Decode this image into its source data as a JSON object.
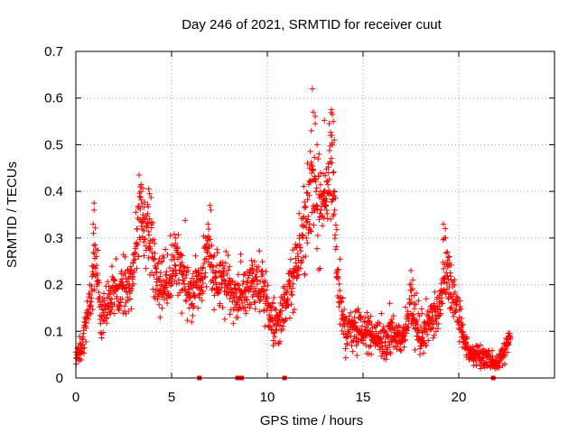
{
  "chart_data": {
    "type": "scatter",
    "title": "Day 246 of 2021, SRMTID for receiver cuut",
    "xlabel": "GPS time / hours",
    "ylabel": "SRMTID / TECUs",
    "xlim": [
      0,
      25
    ],
    "ylim": [
      0,
      0.7
    ],
    "grid": true,
    "marker": "+",
    "color": "#ff0000",
    "x_ticks": [
      {
        "value": 0,
        "label": "0"
      },
      {
        "value": 5,
        "label": "5"
      },
      {
        "value": 10,
        "label": "10"
      },
      {
        "value": 15,
        "label": "15"
      },
      {
        "value": 20,
        "label": "20"
      }
    ],
    "y_ticks": [
      {
        "value": 0,
        "label": "0"
      },
      {
        "value": 0.1,
        "label": "0.1"
      },
      {
        "value": 0.2,
        "label": "0.2"
      },
      {
        "value": 0.3,
        "label": "0.3"
      },
      {
        "value": 0.4,
        "label": "0.4"
      },
      {
        "value": 0.5,
        "label": "0.5"
      },
      {
        "value": 0.6,
        "label": "0.6"
      },
      {
        "value": 0.7,
        "label": "0.7"
      }
    ],
    "envelope_points": [
      [
        0.0,
        0.04,
        0.02
      ],
      [
        0.3,
        0.07,
        0.03
      ],
      [
        0.6,
        0.12,
        0.04
      ],
      [
        0.8,
        0.17,
        0.05
      ],
      [
        1.0,
        0.28,
        0.06
      ],
      [
        1.3,
        0.13,
        0.04
      ],
      [
        1.7,
        0.16,
        0.05
      ],
      [
        2.0,
        0.18,
        0.05
      ],
      [
        2.5,
        0.19,
        0.05
      ],
      [
        3.0,
        0.22,
        0.05
      ],
      [
        3.3,
        0.36,
        0.07
      ],
      [
        3.6,
        0.33,
        0.07
      ],
      [
        3.9,
        0.3,
        0.06
      ],
      [
        4.3,
        0.19,
        0.05
      ],
      [
        4.8,
        0.21,
        0.05
      ],
      [
        5.2,
        0.25,
        0.06
      ],
      [
        5.6,
        0.21,
        0.05
      ],
      [
        6.0,
        0.18,
        0.05
      ],
      [
        6.5,
        0.2,
        0.05
      ],
      [
        6.9,
        0.28,
        0.06
      ],
      [
        7.3,
        0.22,
        0.05
      ],
      [
        7.8,
        0.2,
        0.05
      ],
      [
        8.3,
        0.17,
        0.04
      ],
      [
        8.8,
        0.19,
        0.05
      ],
      [
        9.3,
        0.2,
        0.05
      ],
      [
        9.8,
        0.19,
        0.05
      ],
      [
        10.2,
        0.12,
        0.04
      ],
      [
        10.6,
        0.12,
        0.04
      ],
      [
        11.0,
        0.17,
        0.05
      ],
      [
        11.4,
        0.22,
        0.06
      ],
      [
        11.8,
        0.29,
        0.07
      ],
      [
        12.2,
        0.38,
        0.09
      ],
      [
        12.5,
        0.43,
        0.1
      ],
      [
        12.8,
        0.39,
        0.09
      ],
      [
        13.1,
        0.4,
        0.09
      ],
      [
        13.4,
        0.47,
        0.1
      ],
      [
        13.7,
        0.2,
        0.06
      ],
      [
        14.0,
        0.11,
        0.04
      ],
      [
        14.5,
        0.1,
        0.04
      ],
      [
        15.0,
        0.1,
        0.04
      ],
      [
        15.5,
        0.09,
        0.03
      ],
      [
        16.0,
        0.08,
        0.03
      ],
      [
        16.5,
        0.09,
        0.03
      ],
      [
        17.0,
        0.08,
        0.03
      ],
      [
        17.5,
        0.16,
        0.05
      ],
      [
        18.0,
        0.1,
        0.04
      ],
      [
        18.5,
        0.12,
        0.04
      ],
      [
        19.0,
        0.16,
        0.05
      ],
      [
        19.3,
        0.24,
        0.06
      ],
      [
        19.8,
        0.17,
        0.05
      ],
      [
        20.2,
        0.09,
        0.03
      ],
      [
        20.6,
        0.05,
        0.02
      ],
      [
        21.0,
        0.05,
        0.02
      ],
      [
        21.5,
        0.04,
        0.02
      ],
      [
        22.0,
        0.03,
        0.015
      ],
      [
        22.4,
        0.06,
        0.02
      ],
      [
        22.7,
        0.09,
        0.02
      ]
    ],
    "peak_points": [
      [
        0.95,
        0.375
      ],
      [
        0.95,
        0.36
      ],
      [
        0.9,
        0.33
      ],
      [
        0.92,
        0.31
      ],
      [
        0.85,
        0.24
      ],
      [
        3.3,
        0.435
      ],
      [
        3.4,
        0.4
      ],
      [
        3.35,
        0.41
      ],
      [
        3.8,
        0.405
      ],
      [
        3.85,
        0.395
      ],
      [
        3.5,
        0.35
      ],
      [
        3.6,
        0.34
      ],
      [
        5.2,
        0.3
      ],
      [
        5.3,
        0.28
      ],
      [
        7.0,
        0.37
      ],
      [
        7.05,
        0.36
      ],
      [
        6.9,
        0.33
      ],
      [
        12.35,
        0.62
      ],
      [
        12.4,
        0.57
      ],
      [
        12.5,
        0.545
      ],
      [
        12.3,
        0.53
      ],
      [
        12.6,
        0.5
      ],
      [
        12.1,
        0.46
      ],
      [
        12.2,
        0.45
      ],
      [
        12.7,
        0.48
      ],
      [
        13.35,
        0.575
      ],
      [
        13.4,
        0.565
      ],
      [
        13.45,
        0.55
      ],
      [
        13.3,
        0.52
      ],
      [
        13.5,
        0.51
      ],
      [
        13.4,
        0.5
      ],
      [
        13.2,
        0.44
      ],
      [
        13.1,
        0.42
      ],
      [
        12.95,
        0.4
      ],
      [
        13.0,
        0.38
      ],
      [
        12.8,
        0.36
      ],
      [
        19.2,
        0.33
      ],
      [
        19.3,
        0.32
      ],
      [
        19.25,
        0.3
      ],
      [
        19.4,
        0.27
      ],
      [
        19.5,
        0.26
      ],
      [
        9.2,
        0.235
      ],
      [
        17.5,
        0.2
      ],
      [
        17.6,
        0.21
      ],
      [
        16.4,
        0.16
      ],
      [
        15.2,
        0.14
      ]
    ],
    "gap_markers": [
      6.45,
      8.45,
      8.55,
      8.65,
      10.9,
      21.8
    ]
  }
}
